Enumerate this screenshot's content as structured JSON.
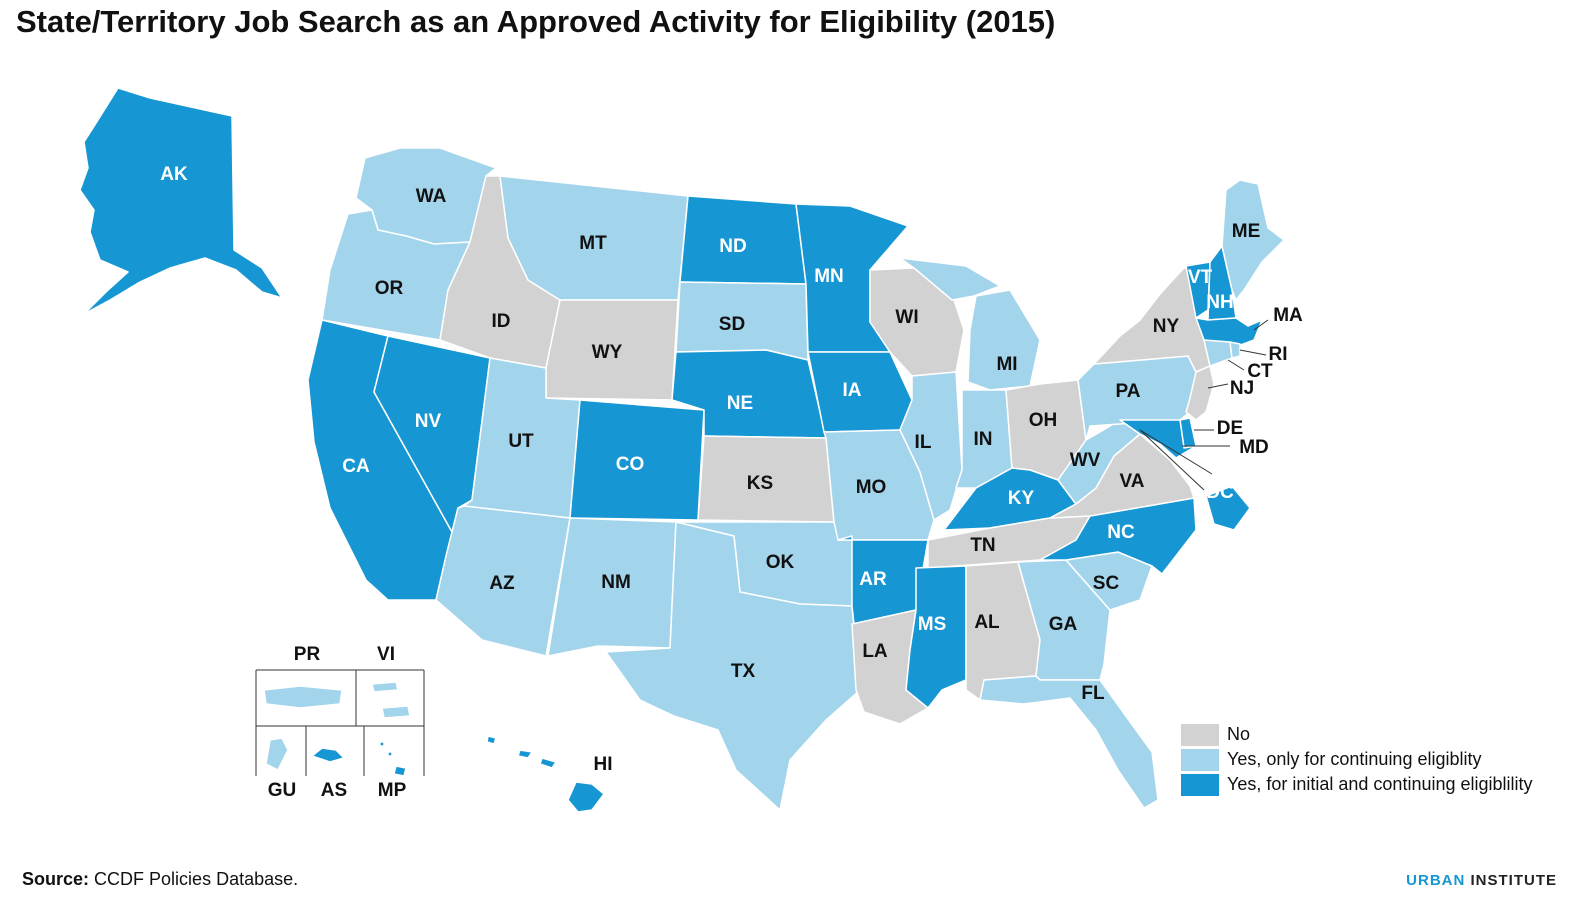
{
  "title": "State/Territory Job Search as an Approved Activity for Eligibility (2015)",
  "colors": {
    "no": "#d2d2d2",
    "continuing": "#a2d4ec",
    "initial": "#1696d2"
  },
  "legend": [
    {
      "key": "no",
      "label": "No"
    },
    {
      "key": "continuing",
      "label": "Yes, only for continuing eligiblity"
    },
    {
      "key": "initial",
      "label": "Yes, for initial and continuing eligiblility"
    }
  ],
  "states": {
    "AK": "initial",
    "HI": "initial",
    "WA": "continuing",
    "OR": "continuing",
    "CA": "initial",
    "ID": "no",
    "NV": "initial",
    "MT": "continuing",
    "WY": "no",
    "UT": "continuing",
    "AZ": "continuing",
    "CO": "initial",
    "NM": "continuing",
    "ND": "initial",
    "SD": "continuing",
    "NE": "initial",
    "KS": "no",
    "OK": "continuing",
    "TX": "continuing",
    "MN": "initial",
    "IA": "initial",
    "MO": "continuing",
    "AR": "initial",
    "LA": "no",
    "WI": "no",
    "IL": "continuing",
    "MI": "continuing",
    "IN": "continuing",
    "OH": "no",
    "KY": "initial",
    "TN": "no",
    "MS": "initial",
    "AL": "no",
    "GA": "continuing",
    "FL": "continuing",
    "SC": "continuing",
    "NC": "initial",
    "VA": "no",
    "WV": "continuing",
    "PA": "continuing",
    "NY": "no",
    "VT": "initial",
    "NH": "initial",
    "ME": "continuing",
    "MA": "initial",
    "RI": "continuing",
    "CT": "continuing",
    "NJ": "no",
    "DE": "initial",
    "MD": "initial",
    "DC": "initial",
    "PR": "continuing",
    "VI": "continuing",
    "GU": "continuing",
    "AS": "initial",
    "MP": "initial"
  },
  "territory_labels": {
    "PR": "PR",
    "VI": "VI",
    "GU": "GU",
    "AS": "AS",
    "MP": "MP"
  },
  "source": {
    "prefix": "Source:",
    "text": "CCDF Policies Database."
  },
  "logo": {
    "part1": "URBAN",
    "part2": "INSTITUTE"
  }
}
